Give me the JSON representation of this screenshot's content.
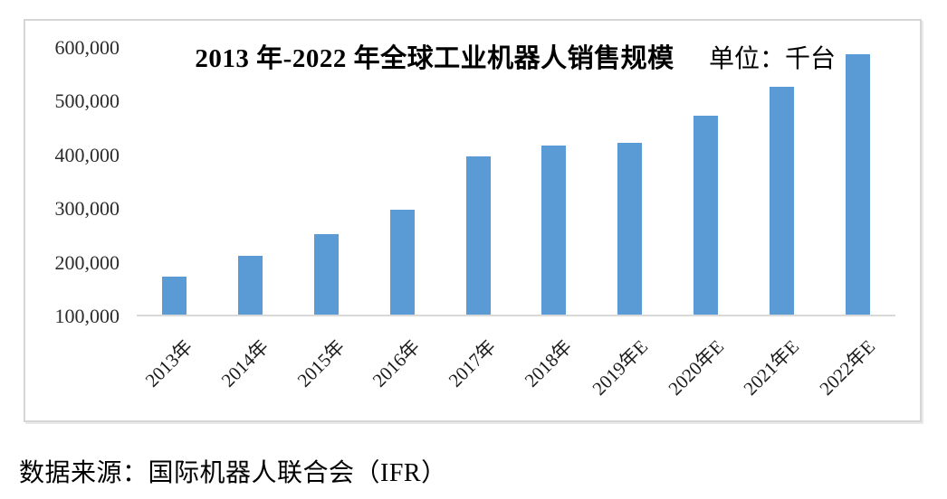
{
  "chart_data": {
    "type": "bar",
    "title": "2013 年-2022 年全球工业机器人销售规模",
    "unit_label": "单位：千台",
    "categories": [
      "2013年",
      "2014年",
      "2015年",
      "2016年",
      "2017年",
      "2018年",
      "2019年E",
      "2020年E",
      "2021年E",
      "2022年E"
    ],
    "values": [
      170000,
      210000,
      250000,
      295000,
      395000,
      415000,
      420000,
      470000,
      525000,
      585000
    ],
    "xlabel": "",
    "ylabel": "",
    "ylim": [
      100000,
      600000
    ],
    "y_tick_step": 100000,
    "y_tick_labels": [
      "600,000",
      "500,000",
      "400,000",
      "300,000",
      "200,000",
      "100,000"
    ],
    "grid": false,
    "legend": "none",
    "bar_color": "#5b9bd5",
    "axis_line_color": "#d9d9d9"
  },
  "caption": "数据来源：国际机器人联合会（IFR）"
}
